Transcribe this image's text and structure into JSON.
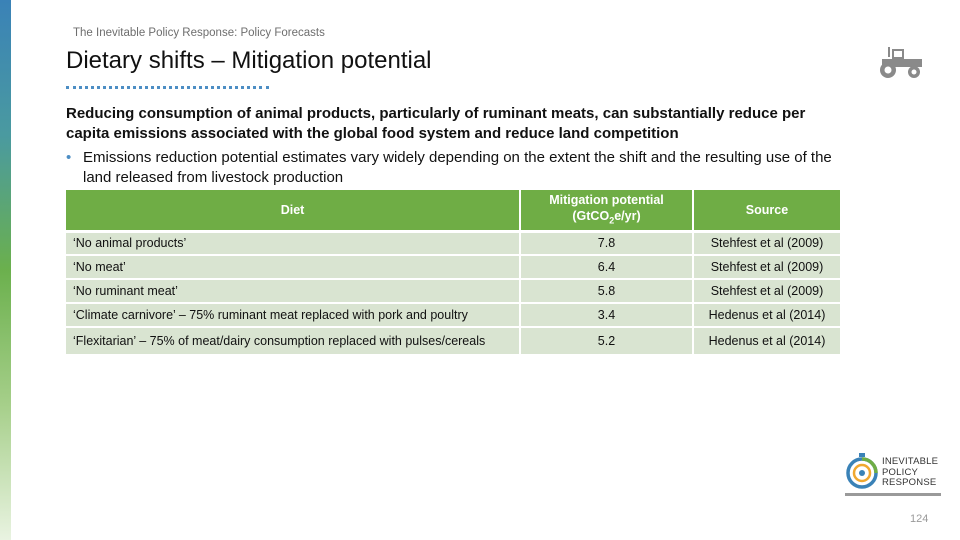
{
  "breadcrumb": "The Inevitable Policy Response: Policy Forecasts",
  "title": "Dietary shifts – Mitigation potential",
  "headline": "Reducing consumption of animal products, particularly of ruminant meats, can substantially reduce per capita emissions associated with the global food system and reduce land competition",
  "bullet": "Emissions reduction potential estimates vary widely depending on the extent the shift and the resulting use of the land released from livestock production",
  "table": {
    "headers": {
      "diet": "Diet",
      "mitigation_line1": "Mitigation potential",
      "mitigation_pre": "(GtCO",
      "mitigation_sub": "2",
      "mitigation_post": "e/yr)",
      "source": "Source"
    },
    "rows": [
      {
        "diet": "‘No animal products’",
        "mitigation": "7.8",
        "source": "Stehfest et al (2009)"
      },
      {
        "diet": "‘No meat’",
        "mitigation": "6.4",
        "source": "Stehfest et al (2009)"
      },
      {
        "diet": "‘No ruminant meat’",
        "mitigation": "5.8",
        "source": "Stehfest et al (2009)"
      },
      {
        "diet": "‘Climate carnivore’ – 75% ruminant meat replaced with pork and poultry",
        "mitigation": "3.4",
        "source": "Hedenus et al (2014)"
      },
      {
        "diet": "‘Flexitarian’ – 75% of meat/dairy consumption replaced with pulses/cereals",
        "mitigation": "5.2",
        "source": "Hedenus et al (2014)"
      }
    ]
  },
  "logo": {
    "line1": "INEVITABLE",
    "line2": "POLICY",
    "line3": "RESPONSE"
  },
  "icons": {
    "corner_icon": "tractor-icon",
    "logo_icon": "stopwatch-logo-icon"
  },
  "colors": {
    "table_header": "#6fad45",
    "table_row": "#d9e4d1",
    "accent_blue": "#4d8ec4"
  },
  "page_number": "124"
}
